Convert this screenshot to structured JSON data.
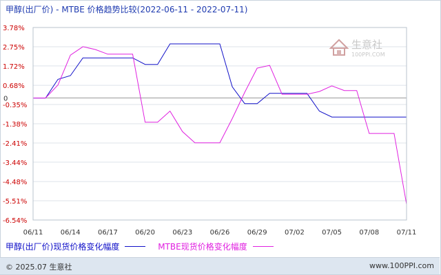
{
  "chart_data": {
    "type": "line",
    "title": "甲醇(出厂价) - MTBE 价格趋势比较(2022-06-11 - 2022-07-11)",
    "x_tick_labels": [
      "06/11",
      "06/14",
      "06/17",
      "06/20",
      "06/23",
      "06/26",
      "06/29",
      "07/02",
      "07/05",
      "07/08",
      "07/11"
    ],
    "x_range": [
      "2022-06-11",
      "2022-07-11"
    ],
    "y_tick_labels": [
      "3.78%",
      "2.75%",
      "1.72%",
      "0.68%",
      "0",
      "-0.35%",
      "-1.38%",
      "-2.41%",
      "-3.44%",
      "-4.48%",
      "-5.51%",
      "-6.54%"
    ],
    "ylim": [
      -6.54,
      3.78
    ],
    "grid": "horizontal",
    "legend_position": "bottom",
    "series": [
      {
        "name": "甲醇(出厂价)现货价格变化幅度",
        "color": "#1010c8",
        "x": [
          "2022-06-11",
          "2022-06-12",
          "2022-06-13",
          "2022-06-14",
          "2022-06-15",
          "2022-06-16",
          "2022-06-17",
          "2022-06-18",
          "2022-06-19",
          "2022-06-20",
          "2022-06-21",
          "2022-06-22",
          "2022-06-23",
          "2022-06-24",
          "2022-06-25",
          "2022-06-26",
          "2022-06-27",
          "2022-06-28",
          "2022-06-29",
          "2022-06-30",
          "2022-07-01",
          "2022-07-02",
          "2022-07-03",
          "2022-07-04",
          "2022-07-05",
          "2022-07-06",
          "2022-07-07",
          "2022-07-08",
          "2022-07-09",
          "2022-07-10",
          "2022-07-11"
        ],
        "values": [
          0,
          0,
          1.0,
          1.2,
          2.15,
          2.15,
          2.15,
          2.15,
          2.15,
          1.8,
          1.8,
          2.9,
          2.9,
          2.9,
          2.9,
          2.9,
          0.6,
          -0.3,
          -0.3,
          0.25,
          0.25,
          0.25,
          0.25,
          -0.7,
          -1.02,
          -1.02,
          -1.02,
          -1.02,
          -1.02,
          -1.02,
          -1.02
        ]
      },
      {
        "name": "MTBE现货价格变化幅度",
        "color": "#e020e0",
        "x": [
          "2022-06-11",
          "2022-06-12",
          "2022-06-13",
          "2022-06-14",
          "2022-06-15",
          "2022-06-16",
          "2022-06-17",
          "2022-06-18",
          "2022-06-19",
          "2022-06-20",
          "2022-06-21",
          "2022-06-22",
          "2022-06-23",
          "2022-06-24",
          "2022-06-25",
          "2022-06-26",
          "2022-06-27",
          "2022-06-28",
          "2022-06-29",
          "2022-06-30",
          "2022-07-01",
          "2022-07-02",
          "2022-07-03",
          "2022-07-04",
          "2022-07-05",
          "2022-07-06",
          "2022-07-07",
          "2022-07-08",
          "2022-07-09",
          "2022-07-10",
          "2022-07-11"
        ],
        "values": [
          0,
          0,
          0.7,
          2.3,
          2.75,
          2.6,
          2.35,
          2.35,
          2.35,
          -1.3,
          -1.3,
          -0.7,
          -1.8,
          -2.4,
          -2.4,
          -2.4,
          -1.1,
          0.3,
          1.6,
          1.75,
          0.2,
          0.2,
          0.2,
          0.35,
          0.65,
          0.4,
          0.4,
          -1.9,
          -1.9,
          -1.9,
          -5.7
        ]
      }
    ]
  },
  "watermark": {
    "name": "生意社",
    "url": "100PPI.COM"
  },
  "footer": {
    "copyright": "© 2025.07 生意社",
    "site": "www.100PPI.com"
  }
}
